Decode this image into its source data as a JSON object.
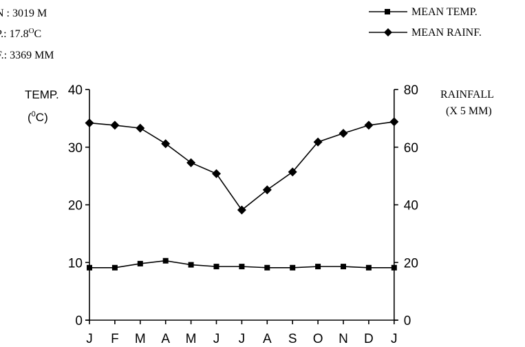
{
  "chart_data": {
    "type": "line",
    "annotations": [
      "N : 3019 M",
      "P.: 17.8",
      "O",
      "C",
      "F.: 3369 MM"
    ],
    "categories": [
      "J",
      "F",
      "M",
      "A",
      "M",
      "J",
      "J",
      "A",
      "S",
      "O",
      "N",
      "D",
      "J"
    ],
    "y_left": {
      "label_line1": "TEMP.",
      "label_line2_pre": "(",
      "label_line2_sup": "0",
      "label_line2_post": "C)",
      "ticks": [
        0,
        10,
        20,
        30,
        40
      ],
      "range": [
        0,
        40
      ]
    },
    "y_right": {
      "label_line1": "RAINFALL",
      "label_line2": "(X 5 MM)",
      "ticks": [
        0,
        20,
        40,
        60,
        80
      ],
      "range": [
        0,
        80
      ]
    },
    "series": [
      {
        "name": "MEAN TEMP.",
        "axis": "left",
        "marker": "square",
        "values": [
          9.1,
          9.1,
          9.8,
          10.3,
          9.6,
          9.3,
          9.3,
          9.1,
          9.1,
          9.3,
          9.3,
          9.1,
          9.1
        ]
      },
      {
        "name": "MEAN RAINF.",
        "axis": "right",
        "marker": "diamond",
        "values": [
          68.4,
          67.6,
          66.6,
          61.2,
          54.6,
          50.8,
          38.2,
          45.2,
          51.4,
          61.8,
          64.8,
          67.6,
          68.8
        ]
      }
    ],
    "grid": false,
    "legend_position": "top-right",
    "color": "#000000"
  }
}
